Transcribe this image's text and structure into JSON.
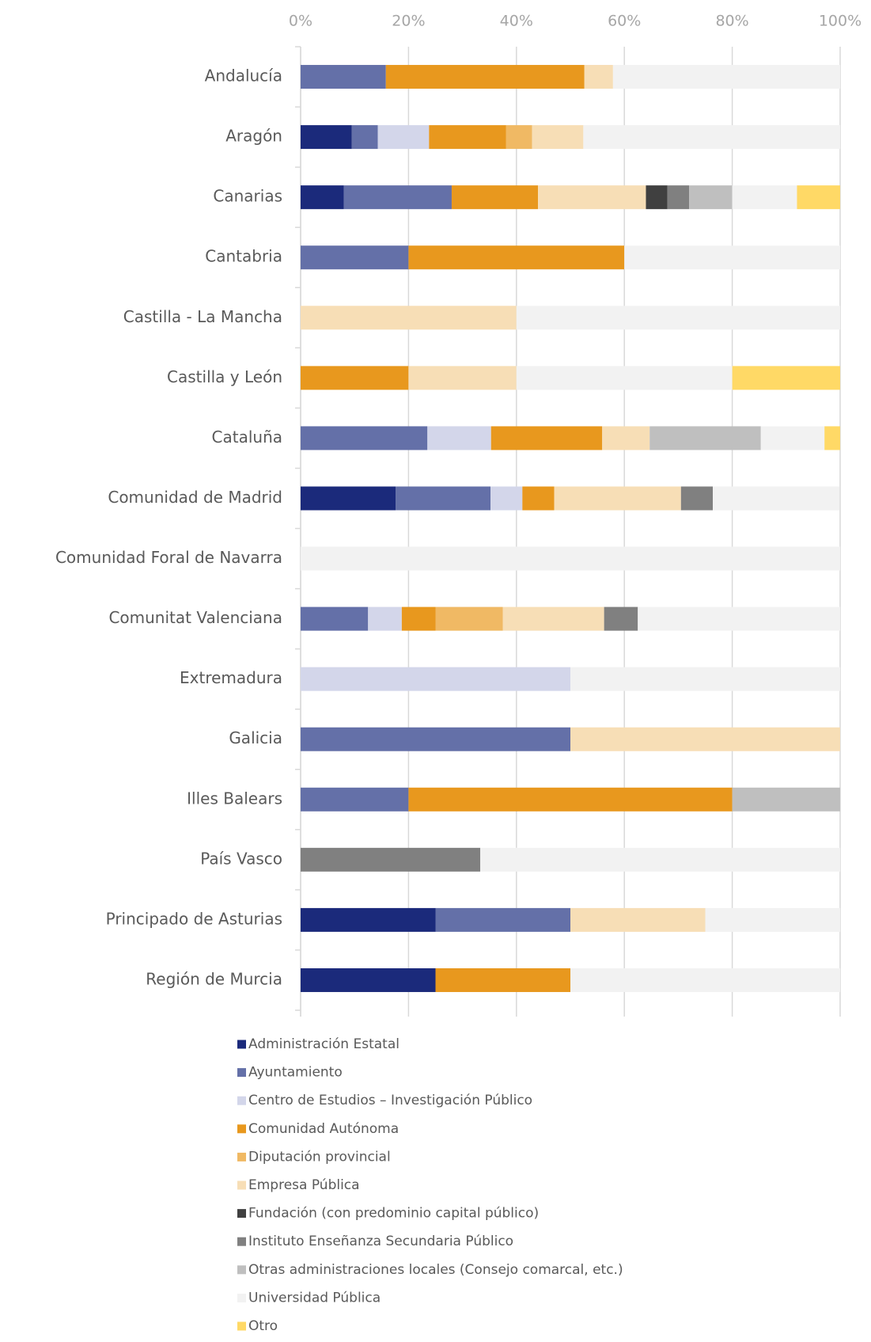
{
  "chart_data": {
    "type": "stacked_bar_horizontal",
    "categories": [
      "Andalucía",
      "Aragón",
      "Canarias",
      "Cantabria",
      "Castilla - La Mancha",
      "Castilla y León",
      "Cataluña",
      "Comunidad de Madrid",
      "Comunidad Foral de Navarra",
      "Comunitat Valenciana",
      "Extremadura",
      "Galicia",
      "Illes Balears",
      "País Vasco",
      "Principado de Asturias",
      "Región de Murcia"
    ],
    "xlim": [
      0,
      100
    ],
    "xticks": [
      {
        "value": 0,
        "label": "0%"
      },
      {
        "value": 20,
        "label": "20%"
      },
      {
        "value": 40,
        "label": "40%"
      },
      {
        "value": 60,
        "label": "60%"
      },
      {
        "value": 80,
        "label": "80%"
      },
      {
        "value": 100,
        "label": "100%"
      }
    ],
    "grid": true,
    "legend": "bottom",
    "series": [
      {
        "name": "Administración Estatal",
        "color": "#1b2a7b",
        "values": [
          null,
          9.5,
          8,
          null,
          null,
          null,
          null,
          17.6,
          null,
          null,
          null,
          null,
          null,
          null,
          25,
          25
        ]
      },
      {
        "name": "Ayuntamiento",
        "color": "#6470a8",
        "values": [
          15.8,
          4.8,
          20,
          20,
          null,
          null,
          23.5,
          17.6,
          null,
          12.5,
          null,
          50,
          20,
          null,
          25,
          null
        ]
      },
      {
        "name": "Centro de Estudios – Investigación Público",
        "color": "#d3d6ea",
        "values": [
          null,
          9.5,
          null,
          null,
          null,
          null,
          11.8,
          5.9,
          null,
          6.25,
          50,
          null,
          null,
          null,
          null,
          null
        ]
      },
      {
        "name": "Comunidad Autónoma",
        "color": "#e8981e",
        "values": [
          36.8,
          14.3,
          16,
          40,
          null,
          20,
          20.6,
          5.9,
          null,
          6.25,
          null,
          null,
          60,
          null,
          null,
          25
        ]
      },
      {
        "name": "Diputación provincial",
        "color": "#f0b964",
        "values": [
          null,
          4.8,
          null,
          null,
          null,
          null,
          null,
          null,
          null,
          12.5,
          null,
          null,
          null,
          null,
          null,
          null
        ]
      },
      {
        "name": "Empresa Pública",
        "color": "#f7deb6",
        "values": [
          5.3,
          9.5,
          20,
          null,
          40,
          20,
          8.8,
          23.5,
          null,
          18.75,
          null,
          50,
          null,
          null,
          25,
          null
        ]
      },
      {
        "name": "Fundación (con predominio capital público)",
        "color": "#404040",
        "values": [
          null,
          null,
          4,
          null,
          null,
          null,
          null,
          null,
          null,
          null,
          null,
          null,
          null,
          null,
          null,
          null
        ]
      },
      {
        "name": "Instituto Enseñanza Secundaria Público",
        "color": "#808080",
        "values": [
          null,
          null,
          4,
          null,
          null,
          null,
          null,
          5.9,
          null,
          6.25,
          null,
          null,
          null,
          33.3,
          null,
          null
        ]
      },
      {
        "name": "Otras administraciones locales (Consejo comarcal, etc.)",
        "color": "#bfbfbf",
        "values": [
          null,
          null,
          8,
          null,
          null,
          null,
          20.6,
          null,
          null,
          null,
          null,
          null,
          20,
          null,
          null,
          null
        ]
      },
      {
        "name": "Universidad Pública",
        "color": "#f2f2f2",
        "values": [
          42.1,
          47.6,
          12,
          40,
          60,
          40,
          11.8,
          23.5,
          100,
          37.5,
          50,
          null,
          null,
          66.7,
          25,
          50
        ]
      },
      {
        "name": "Otro",
        "color": "#ffd966",
        "values": [
          null,
          null,
          8,
          null,
          null,
          20,
          2.9,
          null,
          null,
          null,
          null,
          null,
          null,
          null,
          null,
          null
        ]
      }
    ]
  }
}
